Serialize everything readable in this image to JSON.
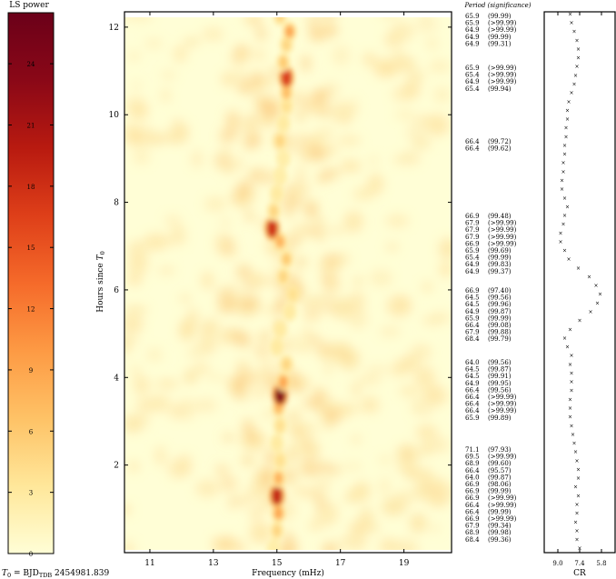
{
  "colorbar": {
    "label": "LS power",
    "ticks": [
      "0",
      "3",
      "6",
      "9",
      "12",
      "15",
      "18",
      "21",
      "24"
    ],
    "range": [
      0,
      26.5
    ],
    "colors": [
      "#fffed6",
      "#ffe79a",
      "#fec266",
      "#fd9a44",
      "#f56a2a",
      "#de3f19",
      "#b81a10",
      "#8a0817",
      "#6b0019"
    ]
  },
  "chart_data": [
    {
      "type": "heatmap",
      "title": "",
      "xlabel": "Frequency (mHz)",
      "ylabel": "Hours since T0",
      "ylabel_main": "Hours since ",
      "ylabel_sym": "T",
      "ylabel_sub": "0",
      "xlim": [
        10.2,
        20.5
      ],
      "ylim": [
        0,
        12.35
      ],
      "xticks": [
        "11",
        "13",
        "15",
        "17",
        "19"
      ],
      "yticks": [
        "2",
        "4",
        "6",
        "8",
        "10",
        "12"
      ],
      "ridge": [
        {
          "t": 0.1,
          "f": 14.9,
          "p": 2.5
        },
        {
          "t": 0.5,
          "f": 15.0,
          "p": 5
        },
        {
          "t": 0.9,
          "f": 15.05,
          "p": 9
        },
        {
          "t": 1.3,
          "f": 15.0,
          "p": 19
        },
        {
          "t": 1.7,
          "f": 15.05,
          "p": 8
        },
        {
          "t": 2.1,
          "f": 15.1,
          "p": 4
        },
        {
          "t": 2.5,
          "f": 15.0,
          "p": 3
        },
        {
          "t": 2.9,
          "f": 15.1,
          "p": 4
        },
        {
          "t": 3.3,
          "f": 15.05,
          "p": 7
        },
        {
          "t": 3.6,
          "f": 15.1,
          "p": 24
        },
        {
          "t": 3.9,
          "f": 15.2,
          "p": 9
        },
        {
          "t": 4.3,
          "f": 15.3,
          "p": 5
        },
        {
          "t": 4.7,
          "f": 15.0,
          "p": 3
        },
        {
          "t": 5.1,
          "f": 15.1,
          "p": 3
        },
        {
          "t": 5.5,
          "f": 15.4,
          "p": 3
        },
        {
          "t": 5.9,
          "f": 15.5,
          "p": 4
        },
        {
          "t": 6.3,
          "f": 15.2,
          "p": 5
        },
        {
          "t": 6.7,
          "f": 15.3,
          "p": 6
        },
        {
          "t": 7.1,
          "f": 15.1,
          "p": 8
        },
        {
          "t": 7.4,
          "f": 14.85,
          "p": 18
        },
        {
          "t": 7.8,
          "f": 14.9,
          "p": 5
        },
        {
          "t": 8.2,
          "f": 15.0,
          "p": 3
        },
        {
          "t": 8.6,
          "f": 15.1,
          "p": 2.5
        },
        {
          "t": 9.0,
          "f": 15.2,
          "p": 2.5
        },
        {
          "t": 9.4,
          "f": 15.1,
          "p": 5
        },
        {
          "t": 9.8,
          "f": 15.2,
          "p": 3
        },
        {
          "t": 10.2,
          "f": 15.3,
          "p": 4
        },
        {
          "t": 10.5,
          "f": 15.3,
          "p": 7
        },
        {
          "t": 10.85,
          "f": 15.3,
          "p": 17
        },
        {
          "t": 11.2,
          "f": 15.2,
          "p": 6
        },
        {
          "t": 11.6,
          "f": 15.3,
          "p": 5
        },
        {
          "t": 11.9,
          "f": 15.4,
          "p": 9
        },
        {
          "t": 12.25,
          "f": 15.1,
          "p": 5
        }
      ]
    },
    {
      "type": "table",
      "title": "Period (significance)",
      "groups": [
        [
          "65.9 (99.99)",
          "65.9 (>99.99)",
          "64.9 (>99.99)",
          "64.9 (99.99)",
          "64.9 (99.31)"
        ],
        [
          "65.9 (>99.99)",
          "65.4 (>99.99)",
          "64.9 (>99.99)",
          "65.4 (99.94)"
        ],
        [
          "66.4 (99.72)",
          "66.4 (99.62)"
        ],
        [
          "66.9 (99.48)",
          "67.9 (>99.99)",
          "67.9 (>99.99)",
          "67.9 (>99.99)",
          "66.9 (>99.99)",
          "65.9 (99.69)",
          "65.4 (99.99)",
          "64.9 (99.83)",
          "64.9 (99.37)"
        ],
        [
          "66.9 (97.40)",
          "64.5 (99.56)",
          "64.5 (99.96)",
          "64.9 (99.87)",
          "65.9 (99.99)",
          "66.4 (99.08)",
          "67.9 (99.88)",
          "68.4 (99.79)"
        ],
        [
          "64.0 (99.56)",
          "64.5 (99.87)",
          "64.5 (99.91)",
          "64.9 (99.95)",
          "66.4 (99.56)",
          "66.4 (>99.99)",
          "66.4 (>99.99)",
          "66.4 (>99.99)",
          "65.9 (99.89)"
        ],
        [
          "71.1 (97.93)",
          "69.5 (>99.99)",
          "68.9 (99.60)",
          "66.4 (95.57)",
          "64.0 (99.87)",
          "66.9 (98.06)",
          "66.9 (99.99)",
          "66.9 (>99.99)",
          "66.4 (>99.99)",
          "66.4 (99.99)",
          "66.9 (>99.99)",
          "67.9 (99.34)",
          "68.9 (99.98)",
          "68.4 (99.36)"
        ]
      ]
    },
    {
      "type": "scatter",
      "title": "",
      "xlabel": "CR",
      "xticks": [
        "9.0",
        "7.4",
        "5.8"
      ],
      "xlim": [
        10.0,
        4.8
      ],
      "ylim": [
        0,
        12.35
      ],
      "points": [
        {
          "cr": 7.4,
          "t": 0.1
        },
        {
          "cr": 7.6,
          "t": 0.3
        },
        {
          "cr": 7.6,
          "t": 0.5
        },
        {
          "cr": 7.7,
          "t": 0.7
        },
        {
          "cr": 7.6,
          "t": 0.9
        },
        {
          "cr": 7.6,
          "t": 1.1
        },
        {
          "cr": 7.5,
          "t": 1.3
        },
        {
          "cr": 7.7,
          "t": 1.5
        },
        {
          "cr": 7.5,
          "t": 1.7
        },
        {
          "cr": 7.5,
          "t": 1.9
        },
        {
          "cr": 7.6,
          "t": 2.1
        },
        {
          "cr": 7.7,
          "t": 2.3
        },
        {
          "cr": 7.8,
          "t": 2.5
        },
        {
          "cr": 7.9,
          "t": 2.7
        },
        {
          "cr": 8.0,
          "t": 2.9
        },
        {
          "cr": 8.1,
          "t": 3.1
        },
        {
          "cr": 8.1,
          "t": 3.3
        },
        {
          "cr": 8.1,
          "t": 3.5
        },
        {
          "cr": 8.0,
          "t": 3.7
        },
        {
          "cr": 8.0,
          "t": 3.9
        },
        {
          "cr": 8.0,
          "t": 4.1
        },
        {
          "cr": 8.1,
          "t": 4.3
        },
        {
          "cr": 8.0,
          "t": 4.5
        },
        {
          "cr": 8.3,
          "t": 4.7
        },
        {
          "cr": 8.5,
          "t": 4.9
        },
        {
          "cr": 8.1,
          "t": 5.1
        },
        {
          "cr": 7.4,
          "t": 5.3
        },
        {
          "cr": 6.6,
          "t": 5.5
        },
        {
          "cr": 6.1,
          "t": 5.7
        },
        {
          "cr": 5.9,
          "t": 5.9
        },
        {
          "cr": 6.2,
          "t": 6.1
        },
        {
          "cr": 6.7,
          "t": 6.3
        },
        {
          "cr": 7.5,
          "t": 6.5
        },
        {
          "cr": 8.2,
          "t": 6.7
        },
        {
          "cr": 8.5,
          "t": 6.9
        },
        {
          "cr": 8.8,
          "t": 7.1
        },
        {
          "cr": 8.8,
          "t": 7.3
        },
        {
          "cr": 8.6,
          "t": 7.5
        },
        {
          "cr": 8.5,
          "t": 7.7
        },
        {
          "cr": 8.3,
          "t": 7.9
        },
        {
          "cr": 8.5,
          "t": 8.1
        },
        {
          "cr": 8.7,
          "t": 8.3
        },
        {
          "cr": 8.7,
          "t": 8.5
        },
        {
          "cr": 8.6,
          "t": 8.7
        },
        {
          "cr": 8.6,
          "t": 8.9
        },
        {
          "cr": 8.5,
          "t": 9.1
        },
        {
          "cr": 8.5,
          "t": 9.3
        },
        {
          "cr": 8.4,
          "t": 9.5
        },
        {
          "cr": 8.4,
          "t": 9.7
        },
        {
          "cr": 8.3,
          "t": 9.9
        },
        {
          "cr": 8.3,
          "t": 10.1
        },
        {
          "cr": 8.2,
          "t": 10.3
        },
        {
          "cr": 8.0,
          "t": 10.5
        },
        {
          "cr": 7.8,
          "t": 10.7
        },
        {
          "cr": 7.7,
          "t": 10.9
        },
        {
          "cr": 7.6,
          "t": 11.1
        },
        {
          "cr": 7.5,
          "t": 11.3
        },
        {
          "cr": 7.5,
          "t": 11.5
        },
        {
          "cr": 7.6,
          "t": 11.7
        },
        {
          "cr": 7.8,
          "t": 11.9
        },
        {
          "cr": 8.0,
          "t": 12.1
        },
        {
          "cr": 8.1,
          "t": 12.3
        }
      ]
    }
  ],
  "footer": {
    "t0_sym": "T",
    "t0_sub": "0",
    "t0_text": " = BJD",
    "t0_tdb": "TDB",
    "t0_value": " 2454981.839"
  }
}
